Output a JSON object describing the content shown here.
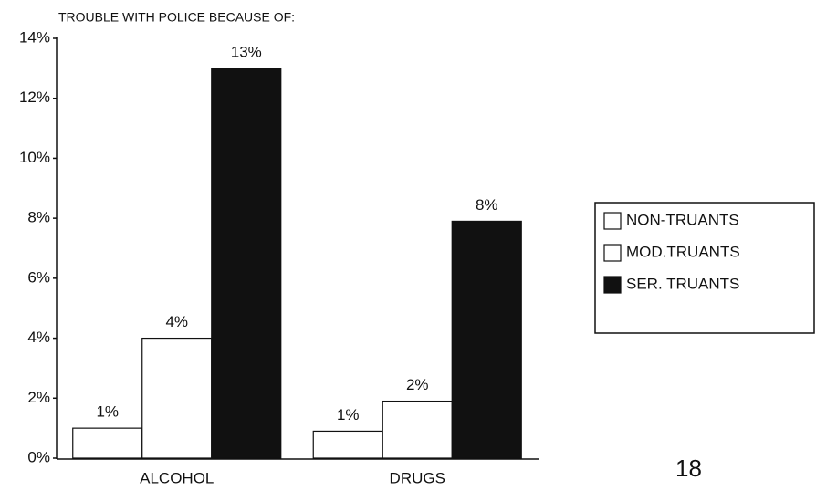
{
  "chart_data": {
    "type": "bar",
    "title": "TROUBLE WITH POLICE BECAUSE OF:",
    "categories": [
      "ALCOHOL",
      "DRUGS"
    ],
    "series": [
      {
        "name": "NON-TRUANTS",
        "color": "#ffffff",
        "values": [
          1,
          0.9
        ],
        "value_labels": [
          "1%",
          "1%"
        ]
      },
      {
        "name": "MOD.TRUANTS",
        "color": "#ffffff",
        "values": [
          4,
          1.9
        ],
        "value_labels": [
          "4%",
          "2%"
        ]
      },
      {
        "name": "SER. TRUANTS",
        "color": "#111111",
        "values": [
          13,
          7.9
        ],
        "value_labels": [
          "13%",
          "8%"
        ]
      }
    ],
    "ylim": [
      0,
      14
    ],
    "yticks": [
      {
        "value": 0,
        "label": "0%"
      },
      {
        "value": 2,
        "label": "2%"
      },
      {
        "value": 4,
        "label": "4%"
      },
      {
        "value": 6,
        "label": "6%"
      },
      {
        "value": 8,
        "label": "8%"
      },
      {
        "value": 10,
        "label": "10%"
      },
      {
        "value": 12,
        "label": "12%"
      },
      {
        "value": 14,
        "label": "14%"
      }
    ],
    "legend": "right",
    "annotation": "18"
  }
}
